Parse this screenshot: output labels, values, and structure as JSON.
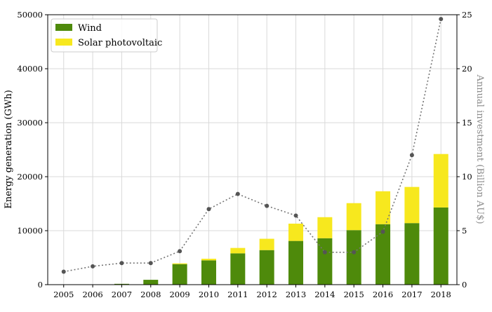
{
  "chart_data": {
    "type": "bar",
    "stacked": true,
    "title": "",
    "categories": [
      "2005",
      "2006",
      "2007",
      "2008",
      "2009",
      "2010",
      "2011",
      "2012",
      "2013",
      "2014",
      "2015",
      "2016",
      "2017",
      "2018"
    ],
    "series": [
      {
        "name": "Wind",
        "color": "#4e8a0b",
        "values": [
          0,
          0,
          150,
          900,
          3800,
          4500,
          5800,
          6400,
          8100,
          8600,
          10100,
          11200,
          11400,
          14300
        ]
      },
      {
        "name": "Solar photovoltaic",
        "color": "#f7e81e",
        "values": [
          0,
          0,
          0,
          0,
          150,
          300,
          1000,
          2100,
          3200,
          3900,
          5000,
          6100,
          6700,
          9900
        ]
      }
    ],
    "line_series": {
      "axis": "right",
      "style": "dotted",
      "color": "#757575",
      "values": [
        1.2,
        1.7,
        2.0,
        2.0,
        3.1,
        7.0,
        8.4,
        7.3,
        6.4,
        3.0,
        3.0,
        4.9,
        12.0,
        24.6
      ]
    },
    "ylabel": "Energy generation (GWh)",
    "ylim": [
      0,
      50000
    ],
    "yticks": [
      "0",
      "10000",
      "20000",
      "30000",
      "40000",
      "50000"
    ],
    "y2label": "Annual investment (Billion AU$)",
    "y2lim": [
      0,
      25
    ],
    "y2ticks": [
      "0",
      "5",
      "10",
      "15",
      "20",
      "25"
    ],
    "grid": true,
    "legend_position": "top-left"
  }
}
